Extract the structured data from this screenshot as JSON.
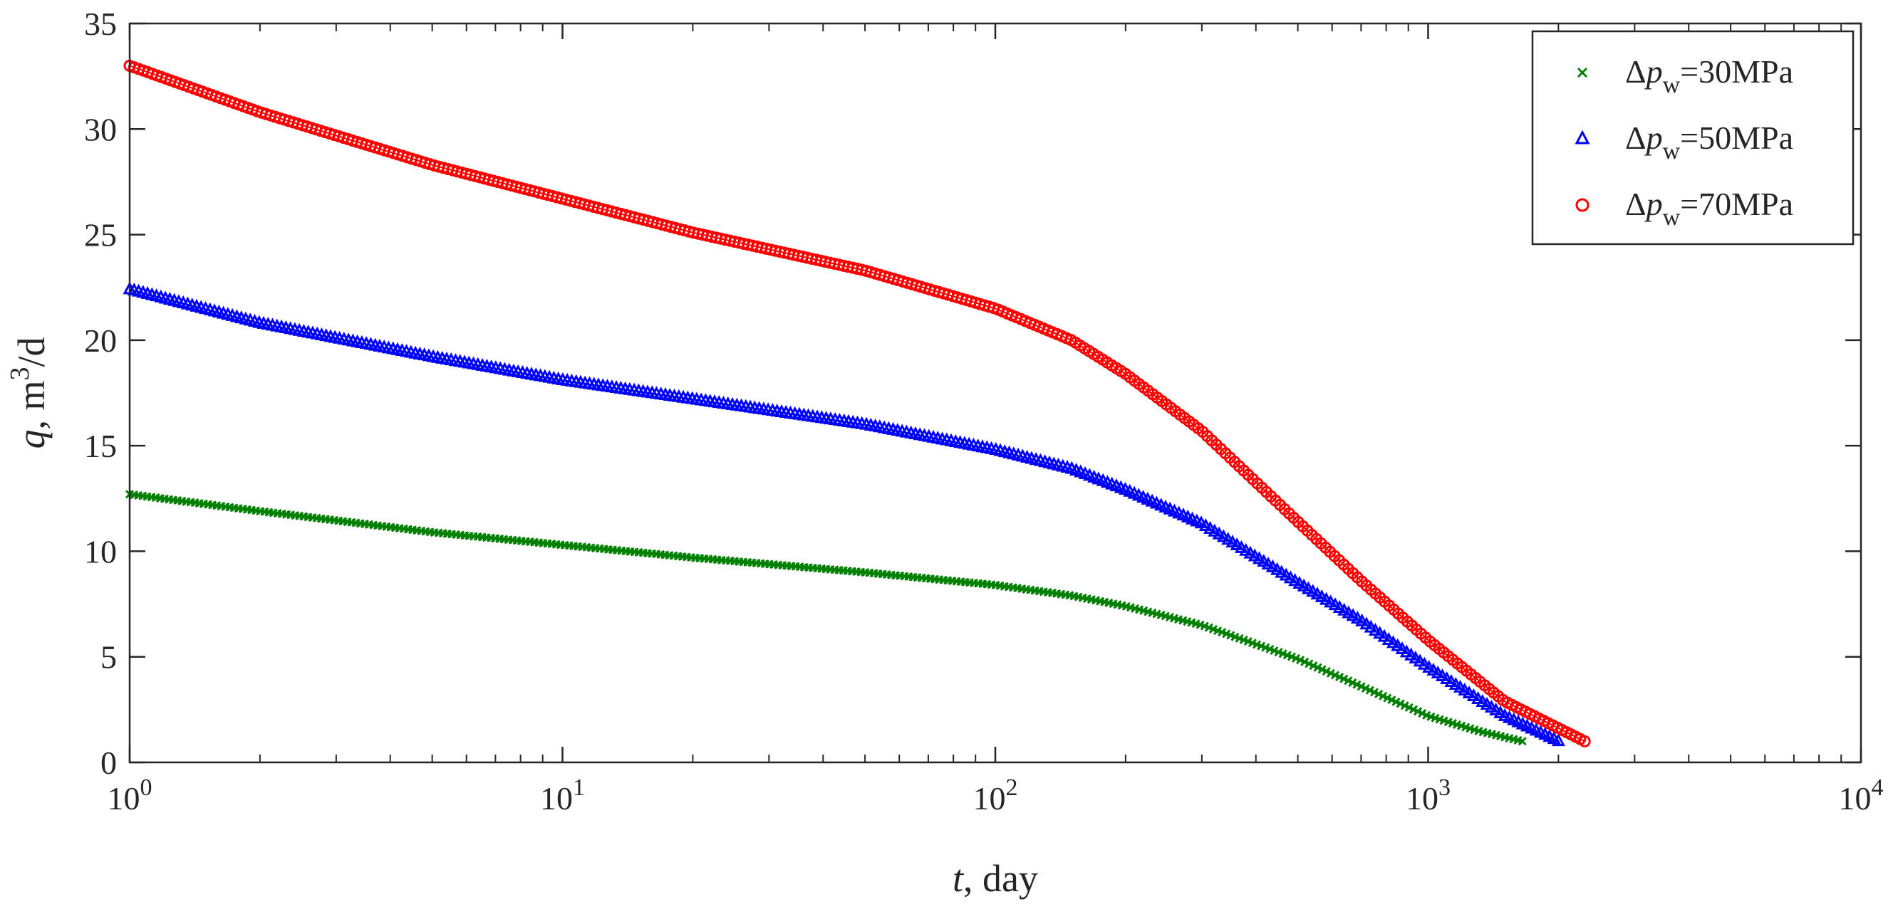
{
  "chart_data": {
    "type": "scatter",
    "xscale": "log",
    "xlim": [
      1,
      10000
    ],
    "ylim": [
      0,
      35
    ],
    "xlabel": {
      "var": "t",
      "rest": ", day"
    },
    "ylabel": {
      "var": "q",
      "rest": ", m",
      "sup": "3",
      "tail": "/d"
    },
    "x_ticks": [
      {
        "base": "10",
        "exp": "0",
        "value": 1
      },
      {
        "base": "10",
        "exp": "1",
        "value": 10
      },
      {
        "base": "10",
        "exp": "2",
        "value": 100
      },
      {
        "base": "10",
        "exp": "3",
        "value": 1000
      },
      {
        "base": "10",
        "exp": "4",
        "value": 10000
      }
    ],
    "y_ticks": [
      "0",
      "5",
      "10",
      "15",
      "20",
      "25",
      "30",
      "35"
    ],
    "grid": false,
    "legend_position": "top-right",
    "series": [
      {
        "name": {
          "pre": "Δ",
          "var": "p",
          "sub": "w",
          "post": "=30MPa"
        },
        "marker": "x",
        "color": "#008000",
        "x": [
          1,
          2,
          5,
          10,
          20,
          50,
          100,
          150,
          200,
          300,
          500,
          700,
          1000,
          1300,
          1650
        ],
        "y": [
          12.7,
          11.9,
          10.9,
          10.3,
          9.7,
          9.0,
          8.4,
          7.9,
          7.4,
          6.5,
          4.9,
          3.6,
          2.2,
          1.5,
          1.0
        ]
      },
      {
        "name": {
          "pre": "Δ",
          "var": "p",
          "sub": "w",
          "post": "=50MPa"
        },
        "marker": "triangle",
        "color": "#0000ff",
        "x": [
          1,
          2,
          5,
          10,
          20,
          50,
          100,
          150,
          200,
          300,
          500,
          700,
          1000,
          1500,
          2000
        ],
        "y": [
          22.4,
          20.8,
          19.2,
          18.1,
          17.2,
          16.0,
          14.8,
          13.9,
          12.9,
          11.3,
          8.5,
          6.7,
          4.5,
          2.2,
          1.0
        ]
      },
      {
        "name": {
          "pre": "Δ",
          "var": "p",
          "sub": "w",
          "post": "=70MPa"
        },
        "marker": "circle",
        "color": "#ff0000",
        "x": [
          1,
          2,
          5,
          10,
          20,
          50,
          100,
          150,
          200,
          300,
          500,
          700,
          1000,
          1500,
          2300
        ],
        "y": [
          33.0,
          30.8,
          28.3,
          26.7,
          25.1,
          23.3,
          21.5,
          20.0,
          18.4,
          15.7,
          11.4,
          8.6,
          5.8,
          2.9,
          1.0
        ]
      }
    ]
  }
}
